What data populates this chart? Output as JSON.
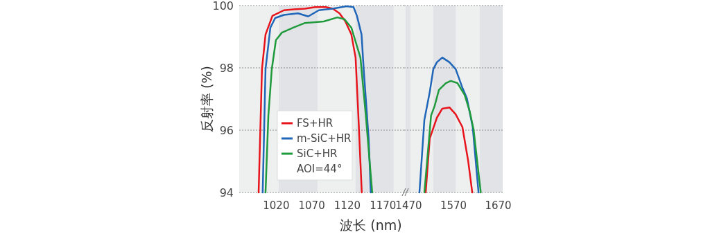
{
  "chart_data": [
    {
      "type": "line",
      "xlabel": "波长 (nm)",
      "ylabel": "反射率 (%)",
      "xlim": [
        968,
        1200
      ],
      "ylim": [
        94,
        100
      ],
      "xticks": [
        1020,
        1070,
        1120,
        1170
      ],
      "yticks": [
        94,
        96,
        98,
        100
      ],
      "grid": "y",
      "legend": "bottom left",
      "annotations": [
        "AOI=44°"
      ],
      "bands": [
        {
          "axis": "x",
          "from": 968,
          "to": 1200,
          "color": "#eef0f0"
        },
        {
          "axis": "x",
          "from": 1023.5,
          "to": 1078,
          "color": "#e1e3e6"
        },
        {
          "axis": "x",
          "from": 1131.6,
          "to": 1185,
          "color": "#e1e3e6"
        }
      ],
      "series": [
        {
          "name": "FS+HR",
          "color": "#e8141c",
          "x": [
            995.3,
            1000,
            1005,
            1014.7,
            1031,
            1045,
            1060.5,
            1075,
            1089.7,
            1099.5,
            1109,
            1117,
            1125.7,
            1131.6,
            1135.5,
            1140.3
          ],
          "values": [
            94,
            97.96,
            99.07,
            99.67,
            99.85,
            99.88,
            99.9,
            99.95,
            99.95,
            99.9,
            99.75,
            99.5,
            99.07,
            98.33,
            96.47,
            94
          ]
        },
        {
          "name": "m-SiC+HR",
          "color": "#1f66b8",
          "x": [
            1001,
            1005,
            1011.8,
            1018.6,
            1031,
            1050.8,
            1065,
            1080,
            1099.5,
            1119,
            1128.7,
            1133.5,
            1140,
            1143,
            1150,
            1153
          ],
          "values": [
            94,
            97.96,
            99.29,
            99.6,
            99.7,
            99.75,
            99.65,
            99.85,
            99.9,
            99.98,
            99.95,
            99.67,
            99.07,
            97.96,
            95.73,
            94
          ]
        },
        {
          "name": "SiC+HR",
          "color": "#1f9a3c",
          "x": [
            1005,
            1009,
            1013.8,
            1019.6,
            1028,
            1044,
            1060.5,
            1086.8,
            1106,
            1116,
            1125.7,
            1138.4,
            1146,
            1155
          ],
          "values": [
            94,
            96.47,
            97.96,
            98.89,
            99.13,
            99.29,
            99.44,
            99.49,
            99.62,
            99.56,
            99.29,
            98.33,
            96.47,
            94
          ]
        }
      ]
    },
    {
      "type": "line",
      "xlim": [
        1460,
        1680
      ],
      "ylim": [
        94,
        100
      ],
      "xticks": [
        1470,
        1570,
        1670
      ],
      "yticks": [
        94,
        96,
        98,
        100
      ],
      "grid": "y",
      "tick_labels": "x",
      "bands": [
        {
          "axis": "x",
          "from": 1460,
          "to": 1680,
          "color": "#eef0f0"
        },
        {
          "axis": "x",
          "from": 1463,
          "to": 1474,
          "color": "#e1e3e6"
        },
        {
          "axis": "x",
          "from": 1525,
          "to": 1575,
          "color": "#e1e3e6"
        },
        {
          "axis": "x",
          "from": 1629,
          "to": 1680,
          "color": "#e1e3e6"
        }
      ],
      "series": [
        {
          "color": "#e8141c",
          "x": [
            1508,
            1517,
            1533,
            1545,
            1561,
            1575,
            1590,
            1603,
            1612
          ],
          "values": [
            94,
            95.73,
            96.4,
            96.69,
            96.73,
            96.51,
            96.1,
            95,
            94
          ]
        },
        {
          "color": "#1f66b8",
          "x": [
            1494,
            1505,
            1517,
            1525,
            1533,
            1545,
            1561,
            1575,
            1590,
            1600,
            1613,
            1626
          ],
          "values": [
            94,
            96.33,
            97.22,
            97.96,
            98.18,
            98.33,
            98.18,
            97.96,
            97.36,
            97.02,
            96.1,
            94
          ]
        },
        {
          "color": "#1f9a3c",
          "x": [
            1505,
            1520,
            1528,
            1537.5,
            1553,
            1564,
            1579,
            1595,
            1606,
            1615,
            1631
          ],
          "values": [
            94,
            96.47,
            96.78,
            97.29,
            97.51,
            97.58,
            97.51,
            97.13,
            96.62,
            96.02,
            94
          ]
        }
      ]
    }
  ]
}
